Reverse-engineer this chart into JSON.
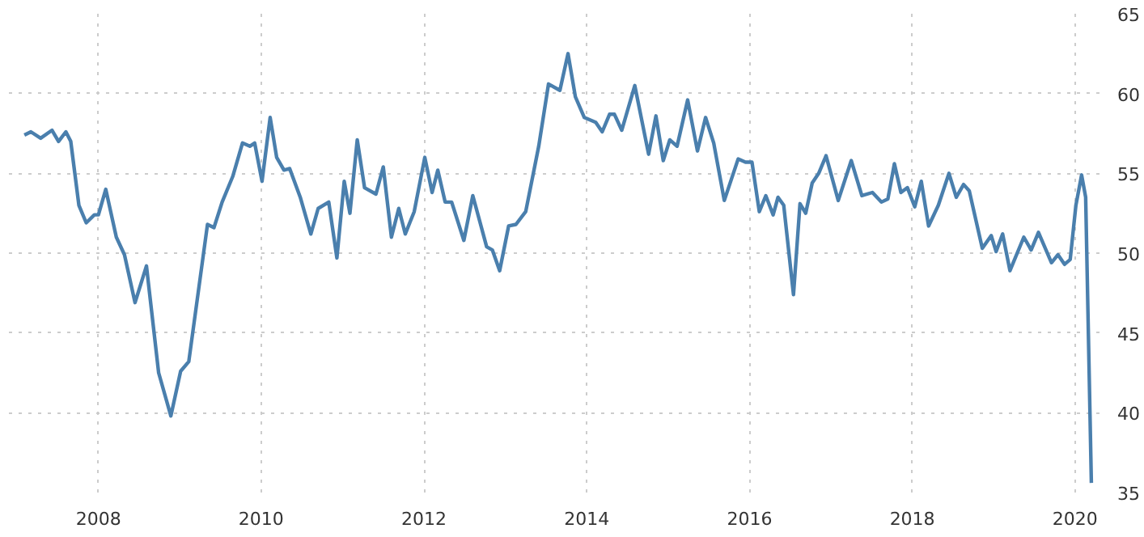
{
  "chart_data": {
    "type": "line",
    "xlim": [
      2006.9,
      2020.3
    ],
    "ylim": [
      35,
      65
    ],
    "xticks": [
      2008,
      2010,
      2012,
      2014,
      2016,
      2018,
      2020
    ],
    "yticks": [
      35,
      40,
      45,
      50,
      55,
      60,
      65
    ],
    "grid": true,
    "marker": "none",
    "line_style": "solid",
    "series": [
      {
        "color": "#4a7fad",
        "x": [
          2007.09,
          2007.17,
          2007.29,
          2007.43,
          2007.51,
          2007.6,
          2007.66,
          2007.76,
          2007.85,
          2007.95,
          2008.0,
          2008.09,
          2008.22,
          2008.32,
          2008.45,
          2008.59,
          2008.74,
          2008.89,
          2009.01,
          2009.11,
          2009.34,
          2009.42,
          2009.52,
          2009.65,
          2009.77,
          2009.86,
          2009.92,
          2010.01,
          2010.11,
          2010.19,
          2010.28,
          2010.35,
          2010.48,
          2010.61,
          2010.7,
          2010.83,
          2010.93,
          2011.02,
          2011.09,
          2011.18,
          2011.27,
          2011.41,
          2011.5,
          2011.6,
          2011.69,
          2011.77,
          2011.88,
          2012.01,
          2012.1,
          2012.17,
          2012.26,
          2012.34,
          2012.49,
          2012.6,
          2012.77,
          2012.84,
          2012.93,
          2013.04,
          2013.13,
          2013.25,
          2013.41,
          2013.53,
          2013.67,
          2013.77,
          2013.86,
          2013.97,
          2014.11,
          2014.19,
          2014.28,
          2014.34,
          2014.43,
          2014.59,
          2014.76,
          2014.85,
          2014.94,
          2015.02,
          2015.11,
          2015.24,
          2015.36,
          2015.46,
          2015.56,
          2015.69,
          2015.86,
          2015.95,
          2016.03,
          2016.12,
          2016.2,
          2016.29,
          2016.35,
          2016.42,
          2016.54,
          2016.62,
          2016.69,
          2016.77,
          2016.85,
          2016.94,
          2017.09,
          2017.25,
          2017.38,
          2017.51,
          2017.62,
          2017.7,
          2017.78,
          2017.86,
          2017.94,
          2018.03,
          2018.11,
          2018.2,
          2018.32,
          2018.45,
          2018.54,
          2018.63,
          2018.7,
          2018.86,
          2018.97,
          2019.03,
          2019.11,
          2019.2,
          2019.37,
          2019.46,
          2019.55,
          2019.71,
          2019.79,
          2019.87,
          2019.94,
          2020.01,
          2020.08,
          2020.13,
          2020.2
        ],
        "values": [
          57.4,
          57.6,
          57.2,
          57.7,
          57.0,
          57.6,
          57.0,
          53.0,
          51.9,
          52.4,
          52.4,
          54.0,
          51.0,
          49.9,
          46.9,
          49.2,
          42.5,
          39.8,
          42.6,
          43.2,
          51.8,
          51.6,
          53.2,
          54.8,
          56.9,
          56.7,
          56.9,
          54.5,
          58.5,
          56.0,
          55.2,
          55.3,
          53.5,
          51.2,
          52.8,
          53.2,
          49.7,
          54.5,
          52.5,
          57.1,
          54.1,
          53.7,
          55.4,
          51.0,
          52.8,
          51.2,
          52.6,
          56.0,
          53.8,
          55.2,
          53.2,
          53.2,
          50.8,
          53.6,
          50.4,
          50.2,
          48.9,
          51.7,
          51.8,
          52.6,
          56.7,
          60.6,
          60.2,
          62.5,
          59.8,
          58.5,
          58.2,
          57.6,
          58.7,
          58.7,
          57.7,
          60.5,
          56.2,
          58.6,
          55.8,
          57.1,
          56.7,
          59.6,
          56.4,
          58.5,
          56.9,
          53.3,
          55.9,
          55.7,
          55.7,
          52.6,
          53.6,
          52.4,
          53.5,
          53.0,
          47.4,
          53.1,
          52.5,
          54.4,
          55.0,
          56.1,
          53.3,
          55.8,
          53.6,
          53.8,
          53.2,
          53.4,
          55.6,
          53.8,
          54.1,
          52.9,
          54.5,
          51.7,
          53.0,
          55.0,
          53.5,
          54.3,
          53.9,
          50.3,
          51.1,
          50.1,
          51.2,
          48.9,
          51.0,
          50.2,
          51.3,
          49.4,
          49.9,
          49.3,
          49.6,
          53.0,
          54.9,
          53.5,
          35.6
        ]
      }
    ]
  }
}
